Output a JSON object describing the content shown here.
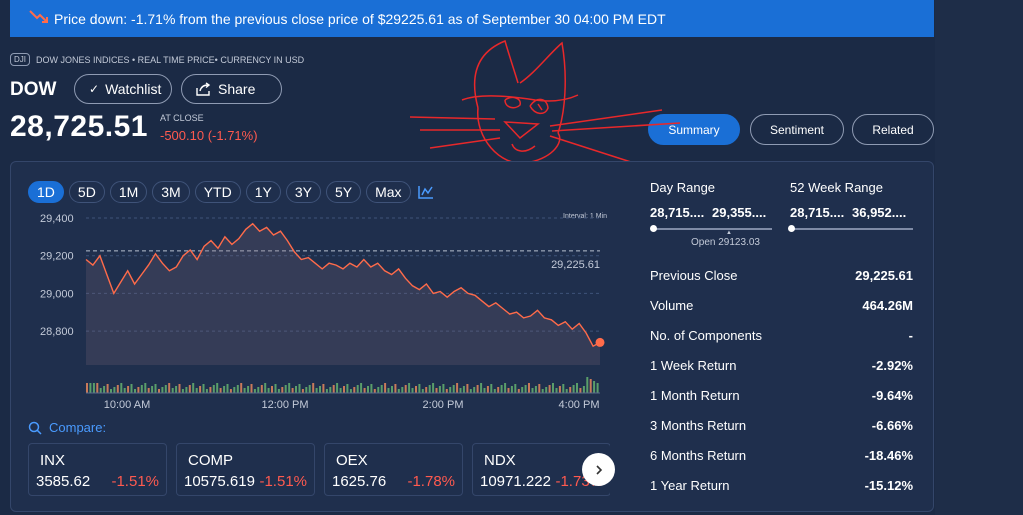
{
  "banner": {
    "text": "Price down: -1.71% from the previous close price of $29225.61 as of September 30 04:00 PM EDT",
    "icon": "trend-down-icon",
    "color": "#1a6fd6"
  },
  "header": {
    "tag": "DJI",
    "subtitle": "DOW JONES INDICES • REAL TIME PRICE• CURRENCY IN USD",
    "ticker": "DOW",
    "watchlist_label": "Watchlist",
    "share_label": "Share",
    "price": "28,725.51",
    "at_close": "AT CLOSE",
    "change": "-500.10 (-1.71%)"
  },
  "tabs": [
    {
      "label": "Summary",
      "active": true
    },
    {
      "label": "Sentiment",
      "active": false
    },
    {
      "label": "Related",
      "active": false
    }
  ],
  "range_buttons": [
    {
      "label": "1D",
      "active": true
    },
    {
      "label": "5D",
      "active": false
    },
    {
      "label": "1M",
      "active": false
    },
    {
      "label": "3M",
      "active": false
    },
    {
      "label": "YTD",
      "active": false
    },
    {
      "label": "1Y",
      "active": false
    },
    {
      "label": "3Y",
      "active": false
    },
    {
      "label": "5Y",
      "active": false
    },
    {
      "label": "Max",
      "active": false
    }
  ],
  "chart": {
    "interval": "Interval: 1 Min",
    "y_ticks": [
      "29,400",
      "29,200",
      "29,000",
      "28,800"
    ],
    "x_ticks": [
      "10:00 AM",
      "12:00 PM",
      "2:00 PM",
      "4:00 PM"
    ],
    "prev_close_label": "29,225.61"
  },
  "chart_data": {
    "type": "line",
    "ylim": [
      28620,
      29400
    ],
    "previous_close": 29225.61,
    "line_color": "#ff6b4a",
    "x_ticks": [
      "10:00 AM",
      "12:00 PM",
      "2:00 PM",
      "4:00 PM"
    ],
    "y_ticks": [
      29400,
      29200,
      29000,
      28800
    ],
    "series": [
      {
        "values": [
          29180,
          29150,
          29200,
          29100,
          29000,
          29060,
          29120,
          29050,
          29100,
          29150,
          29210,
          29160,
          29120,
          29140,
          29200,
          29230,
          29180,
          29250,
          29280,
          29240,
          29300,
          29260,
          29290,
          29340,
          29370,
          29330,
          29350,
          29310,
          29330,
          29280,
          29220,
          29180,
          29190,
          29160,
          29130,
          29160,
          29150,
          29130,
          29160,
          29140,
          29180,
          29140,
          29160,
          29120,
          29100,
          29130,
          29080,
          29040,
          29020,
          29050,
          29000,
          29010,
          28980,
          29010,
          29030,
          29000,
          28990,
          28960,
          28930,
          28950,
          28920,
          28890,
          28900,
          28870,
          28880,
          28910,
          28870,
          28860,
          28830,
          28850,
          28810,
          28840,
          28790,
          28720,
          28740
        ]
      }
    ],
    "volume_color": "#5a9e6a"
  },
  "compare": {
    "label": "Compare:",
    "cards": [
      {
        "symbol": "INX",
        "value": "3585.62",
        "pct": "-1.51%"
      },
      {
        "symbol": "COMP",
        "value": "10575.619",
        "pct": "-1.51%"
      },
      {
        "symbol": "OEX",
        "value": "1625.76",
        "pct": "-1.78%"
      },
      {
        "symbol": "NDX",
        "value": "10971.222",
        "pct": "-1.73%"
      }
    ]
  },
  "stats": {
    "day_range_label": "Day Range",
    "day_low": "28,715....",
    "day_high": "29,355....",
    "week52_label": "52 Week Range",
    "week52_low": "28,715....",
    "week52_high": "36,952....",
    "open_label": "Open 29123.03",
    "rows": [
      {
        "label": "Previous Close",
        "value": "29,225.61"
      },
      {
        "label": "Volume",
        "value": "464.26M"
      },
      {
        "label": "No. of Components",
        "value": "-"
      },
      {
        "label": "1 Week Return",
        "value": "-2.92%"
      },
      {
        "label": "1 Month Return",
        "value": "-9.64%"
      },
      {
        "label": "3 Months Return",
        "value": "-6.66%"
      },
      {
        "label": "6 Months Return",
        "value": "-18.46%"
      },
      {
        "label": "1 Year Return",
        "value": "-15.12%"
      }
    ]
  }
}
